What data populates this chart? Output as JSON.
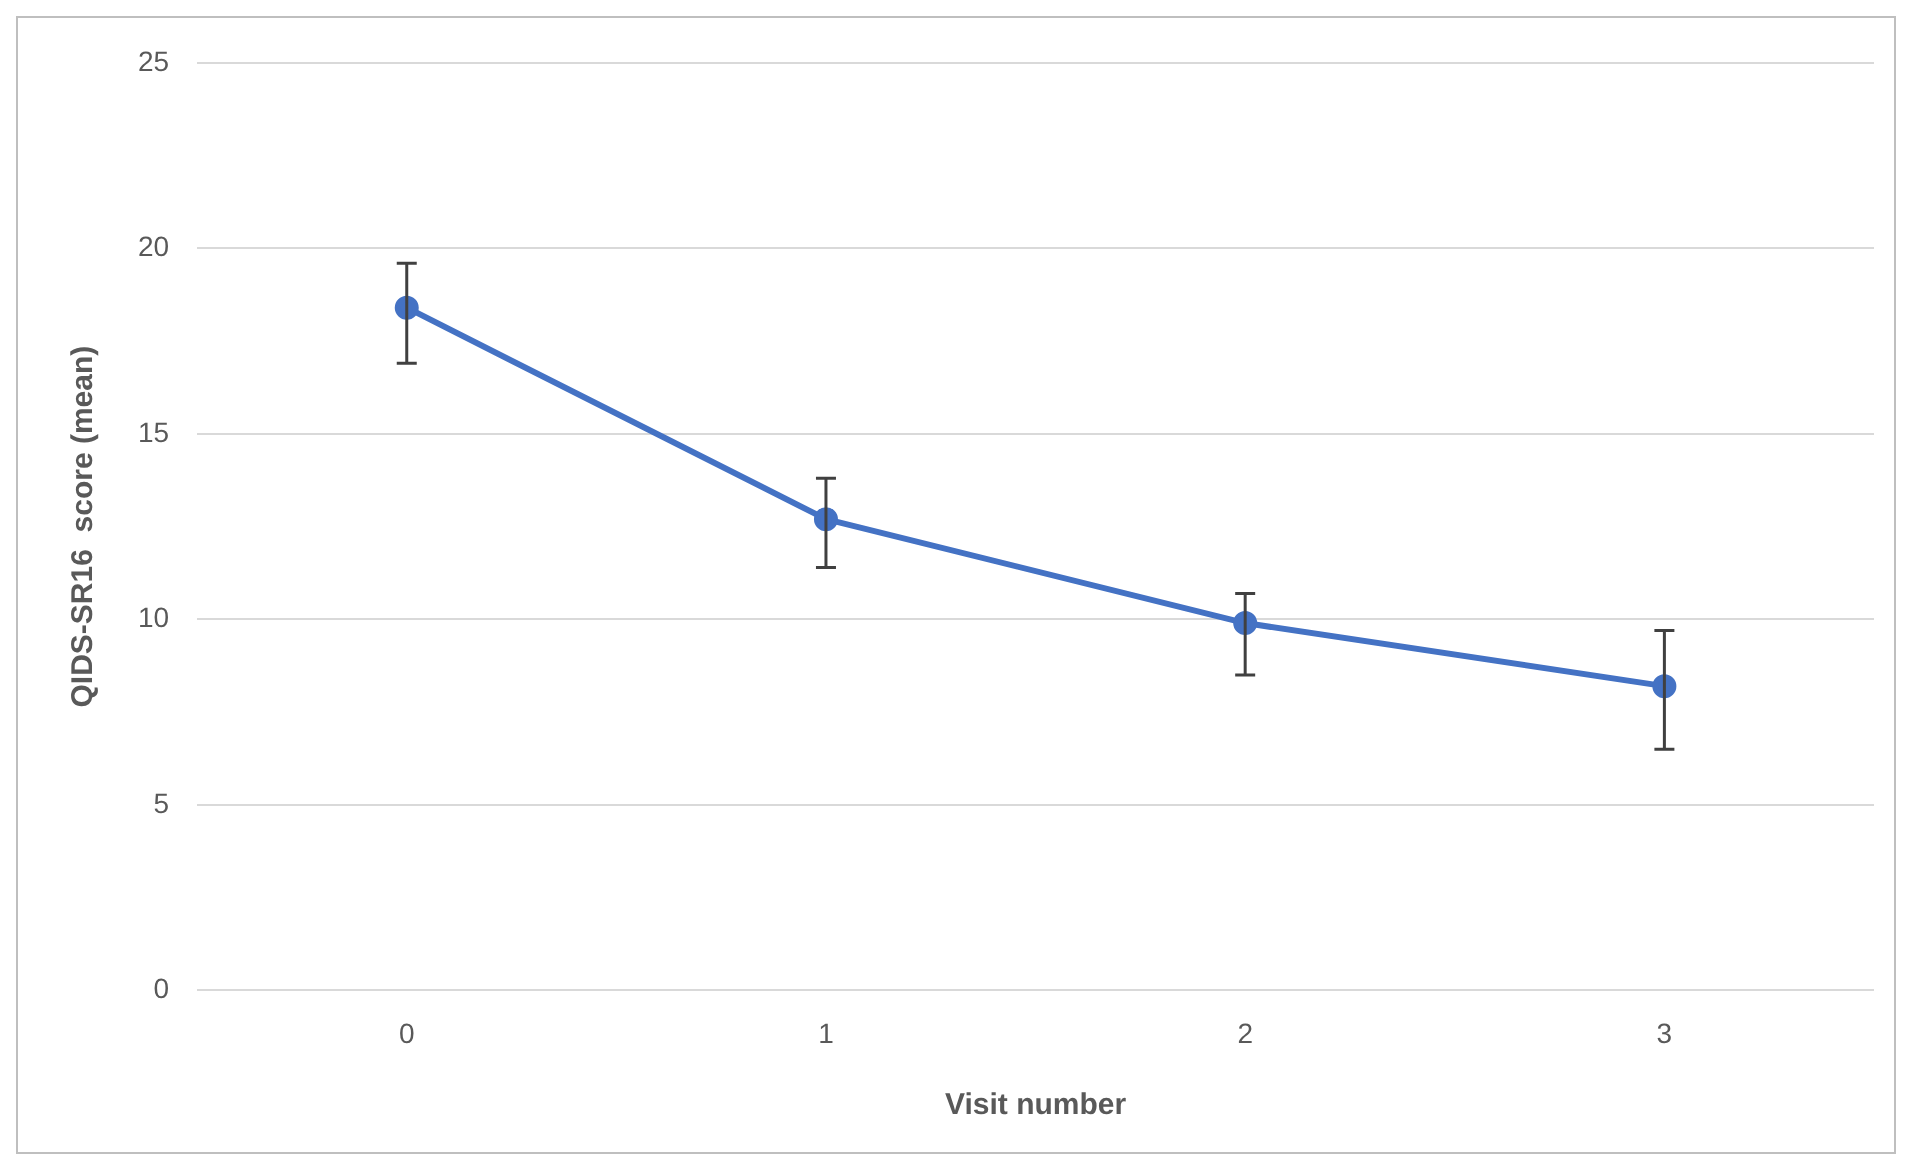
{
  "chart_data": {
    "type": "line",
    "xlabel": "Visit number",
    "ylabel": "QIDS-SR16  score (mean)",
    "categories": [
      "0",
      "1",
      "2",
      "3"
    ],
    "series": [
      {
        "color": "#4472c4",
        "values": [
          18.4,
          12.7,
          9.9,
          8.2
        ],
        "errors": [
          [
            16.9,
            19.6
          ],
          [
            11.4,
            13.8
          ],
          [
            8.5,
            10.7
          ],
          [
            6.5,
            9.7
          ]
        ]
      }
    ],
    "ylim": [
      0,
      25
    ],
    "yticks": [
      0,
      5,
      10,
      15,
      20,
      25
    ],
    "grid": "y",
    "legend": false,
    "marker": "circle",
    "line_style": "solid"
  }
}
